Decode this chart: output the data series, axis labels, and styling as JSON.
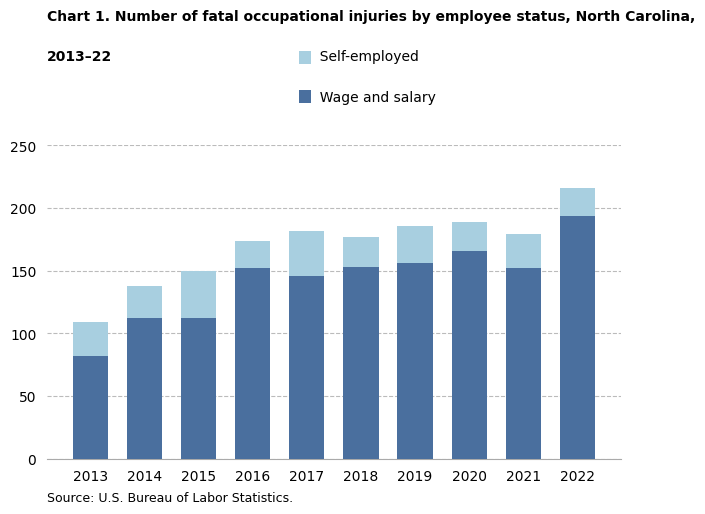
{
  "years": [
    2013,
    2014,
    2015,
    2016,
    2017,
    2018,
    2019,
    2020,
    2021,
    2022
  ],
  "wage_and_salary": [
    82,
    112,
    112,
    152,
    146,
    153,
    156,
    166,
    152,
    194
  ],
  "self_employed": [
    27,
    26,
    38,
    22,
    36,
    24,
    30,
    23,
    27,
    22
  ],
  "wage_color": "#4a6f9e",
  "self_color": "#a8cfe0",
  "title_line1": "Chart 1. Number of fatal occupational injuries by employee status, North Carolina,",
  "title_line2": "2013–22",
  "legend_self": "Self-employed",
  "legend_wage": "Wage and salary",
  "ylim": [
    0,
    250
  ],
  "yticks": [
    0,
    50,
    100,
    150,
    200,
    250
  ],
  "source": "Source: U.S. Bureau of Labor Statistics.",
  "bg_color": "#ffffff",
  "grid_color": "#bbbbbb"
}
